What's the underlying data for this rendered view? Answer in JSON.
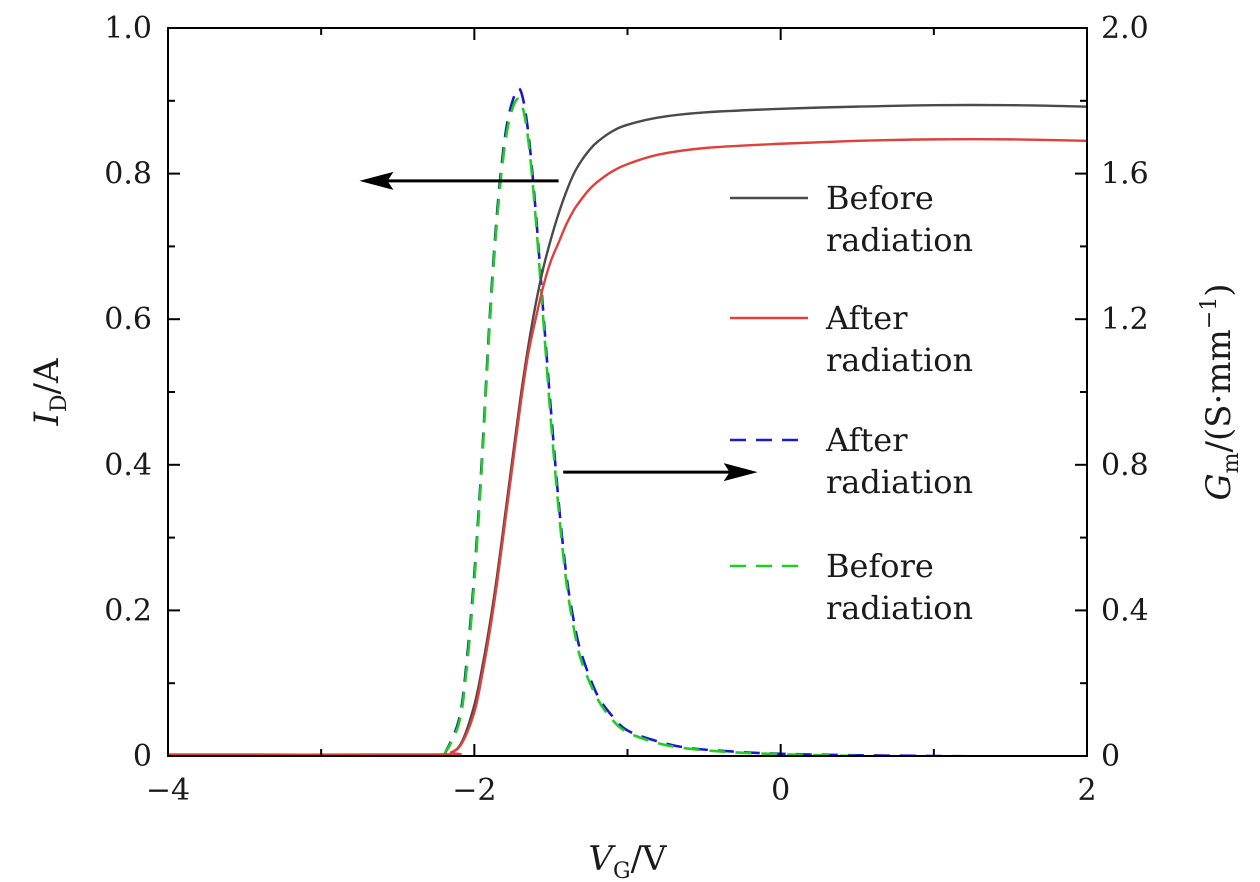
{
  "chart_data": {
    "type": "line",
    "title": "",
    "x_axis": {
      "label_main": "V",
      "label_sub": "G",
      "label_tail": "/V",
      "range": [
        -4,
        2
      ],
      "ticks": [
        -4,
        -2,
        0,
        2
      ],
      "tick_labels": [
        "−4",
        "−2",
        "0",
        "2"
      ]
    },
    "y_left": {
      "label_main": "I",
      "label_sub": "D",
      "label_tail": "/A",
      "range": [
        0,
        1.0
      ],
      "ticks": [
        0,
        0.2,
        0.4,
        0.6,
        0.8,
        1.0
      ],
      "tick_labels": [
        "0",
        "0.2",
        "0.4",
        "0.6",
        "0.8",
        "1.0"
      ]
    },
    "y_right": {
      "label_main": "G",
      "label_sub": "m",
      "label_tail": "/(S·mm",
      "label_sup": "−1",
      "label_close": ")",
      "range": [
        0,
        2.0
      ],
      "ticks": [
        0,
        0.4,
        0.8,
        1.2,
        1.6,
        2.0
      ],
      "tick_labels": [
        "0",
        "0.4",
        "0.8",
        "1.2",
        "1.6",
        "2.0"
      ]
    },
    "series": [
      {
        "name": "Before radiation",
        "legend_line1": "Before",
        "legend_line2": "radiation",
        "axis": "left",
        "color": "#4a4a4a",
        "dash": "solid",
        "x": [
          -4.0,
          -2.25,
          -2.15,
          -2.08,
          -2.0,
          -1.95,
          -1.9,
          -1.85,
          -1.8,
          -1.75,
          -1.7,
          -1.65,
          -1.6,
          -1.55,
          -1.5,
          -1.45,
          -1.4,
          -1.35,
          -1.3,
          -1.25,
          -1.2,
          -1.1,
          -1.0,
          -0.8,
          -0.5,
          0.0,
          0.5,
          1.0,
          1.5,
          2.0
        ],
        "y": [
          0.002,
          0.002,
          0.005,
          0.02,
          0.07,
          0.12,
          0.18,
          0.25,
          0.33,
          0.41,
          0.49,
          0.56,
          0.62,
          0.67,
          0.71,
          0.745,
          0.775,
          0.8,
          0.818,
          0.832,
          0.843,
          0.858,
          0.867,
          0.877,
          0.884,
          0.889,
          0.892,
          0.894,
          0.894,
          0.892
        ]
      },
      {
        "name": "After radiation",
        "legend_line1": "After",
        "legend_line2": "radiation",
        "axis": "left",
        "color": "#e0403c",
        "dash": "solid",
        "x": [
          -4.0,
          -2.25,
          -2.15,
          -2.08,
          -2.0,
          -1.95,
          -1.9,
          -1.85,
          -1.8,
          -1.75,
          -1.7,
          -1.65,
          -1.6,
          -1.55,
          -1.5,
          -1.45,
          -1.4,
          -1.35,
          -1.3,
          -1.25,
          -1.2,
          -1.1,
          -1.0,
          -0.8,
          -0.5,
          0.0,
          0.5,
          1.0,
          1.5,
          2.0
        ],
        "y": [
          0.002,
          0.002,
          0.005,
          0.018,
          0.06,
          0.11,
          0.17,
          0.24,
          0.32,
          0.4,
          0.48,
          0.55,
          0.6,
          0.645,
          0.68,
          0.705,
          0.73,
          0.75,
          0.765,
          0.778,
          0.788,
          0.803,
          0.813,
          0.826,
          0.835,
          0.841,
          0.845,
          0.847,
          0.847,
          0.845
        ]
      },
      {
        "name": "After radiation",
        "legend_line1": "After",
        "legend_line2": "radiation",
        "axis": "right",
        "color": "#1a1acc",
        "dash": "dashed",
        "x": [
          -2.2,
          -2.1,
          -2.05,
          -2.0,
          -1.95,
          -1.9,
          -1.85,
          -1.8,
          -1.75,
          -1.7,
          -1.65,
          -1.6,
          -1.55,
          -1.5,
          -1.45,
          -1.4,
          -1.35,
          -1.3,
          -1.2,
          -1.1,
          -1.0,
          -0.8,
          -0.6,
          -0.3,
          0.0,
          0.5,
          1.0,
          1.5,
          2.0
        ],
        "y": [
          0.0,
          0.1,
          0.26,
          0.5,
          0.82,
          1.2,
          1.5,
          1.7,
          1.8,
          1.83,
          1.72,
          1.5,
          1.22,
          0.95,
          0.7,
          0.5,
          0.37,
          0.28,
          0.17,
          0.11,
          0.07,
          0.04,
          0.022,
          0.012,
          0.006,
          0.002,
          0.0,
          -0.002,
          -0.006
        ]
      },
      {
        "name": "Before radiation",
        "legend_line1": "Before",
        "legend_line2": "radiation",
        "axis": "right",
        "color": "#22cc22",
        "dash": "dashed",
        "x": [
          -2.2,
          -2.1,
          -2.05,
          -2.0,
          -1.95,
          -1.9,
          -1.85,
          -1.8,
          -1.75,
          -1.7,
          -1.65,
          -1.6,
          -1.55,
          -1.5,
          -1.45,
          -1.4,
          -1.35,
          -1.3,
          -1.2,
          -1.1,
          -1.0,
          -0.8,
          -0.6,
          -0.3,
          0.0,
          0.5,
          1.0,
          1.5,
          2.0
        ],
        "y": [
          0.0,
          0.09,
          0.24,
          0.48,
          0.8,
          1.18,
          1.48,
          1.68,
          1.78,
          1.8,
          1.7,
          1.48,
          1.2,
          0.92,
          0.68,
          0.48,
          0.35,
          0.26,
          0.16,
          0.1,
          0.065,
          0.035,
          0.02,
          0.01,
          0.005,
          0.0,
          -0.003,
          -0.006,
          -0.012
        ]
      }
    ],
    "annotations": [
      {
        "name": "left-axis-arrow",
        "points_to": "left",
        "x_from": -1.45,
        "x_to": -2.75,
        "y_left": 0.79
      },
      {
        "name": "right-axis-arrow",
        "points_to": "right",
        "x_from": -1.42,
        "x_to": -0.15,
        "y_left": 0.39
      }
    ],
    "legend_position": "center-right",
    "grid": false
  }
}
